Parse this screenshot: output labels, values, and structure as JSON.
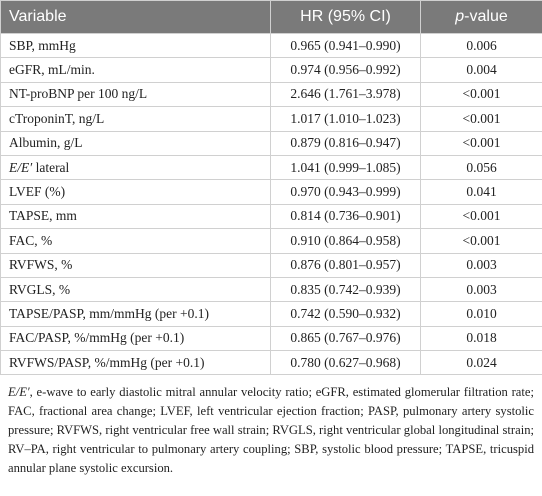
{
  "table": {
    "headers": [
      "Variable",
      "HR (95% CI)",
      [
        {
          "italic": "p"
        },
        "-value"
      ]
    ],
    "rows": [
      [
        "SBP, mmHg",
        "0.965 (0.941–0.990)",
        "0.006"
      ],
      [
        "eGFR, mL/min.",
        "0.974 (0.956–0.992)",
        "0.004"
      ],
      [
        "NT-proBNP per 100 ng/L",
        "2.646 (1.761–3.978)",
        "<0.001"
      ],
      [
        "cTroponinT, ng/L",
        "1.017 (1.010–1.023)",
        "<0.001"
      ],
      [
        "Albumin, g/L",
        "0.879 (0.816–0.947)",
        "<0.001"
      ],
      [
        [
          {
            "italic": "E/E′"
          },
          " lateral"
        ],
        "1.041 (0.999–1.085)",
        "0.056"
      ],
      [
        "LVEF (%)",
        "0.970 (0.943–0.999)",
        "0.041"
      ],
      [
        "TAPSE, mm",
        "0.814 (0.736–0.901)",
        "<0.001"
      ],
      [
        "FAC, %",
        "0.910 (0.864–0.958)",
        "<0.001"
      ],
      [
        "RVFWS, %",
        "0.876 (0.801–0.957)",
        "0.003"
      ],
      [
        "RVGLS, %",
        "0.835 (0.742–0.939)",
        "0.003"
      ],
      [
        "TAPSE/PASP, mm/mmHg (per +0.1)",
        "0.742 (0.590–0.932)",
        "0.010"
      ],
      [
        "FAC/PASP, %/mmHg (per +0.1)",
        "0.865 (0.767–0.976)",
        "0.018"
      ],
      [
        "RVFWS/PASP, %/mmHg (per +0.1)",
        "0.780 (0.627–0.968)",
        "0.024"
      ]
    ]
  },
  "footnote": [
    {
      "italic": "E/E′"
    },
    ", e-wave to early diastolic mitral annular velocity ratio; eGFR, estimated glomerular filtration rate; FAC, fractional area change; LVEF, left ventricular ejection fraction; PASP, pulmonary artery systolic pressure; RVFWS, right ventricular free wall strain; RVGLS, right ventricular global longitudinal strain; RV–PA, right ventricular to pulmonary artery coupling; SBP, systolic blood pressure; TAPSE, tricuspid annular plane systolic excursion."
  ]
}
